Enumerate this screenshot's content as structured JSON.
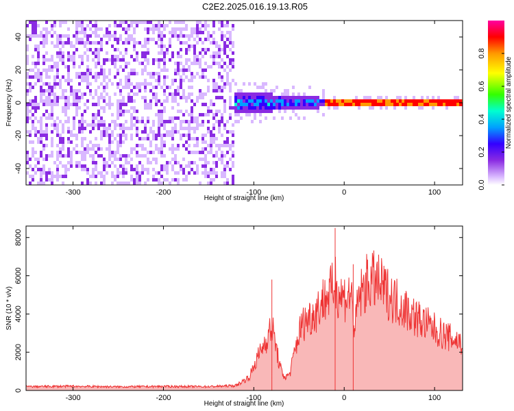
{
  "title": "C2E2.2025.016.19.13.R05",
  "chart_data": [
    {
      "type": "heatmap",
      "xlabel": "Height of straight line (km)",
      "ylabel": "Frequency (Hz)",
      "xlim": [
        -352,
        131
      ],
      "ylim": [
        -50,
        50
      ],
      "xticks": [
        -300,
        -200,
        -100,
        0,
        100
      ],
      "yticks": [
        -40,
        -20,
        0,
        20,
        40
      ],
      "colorbar": {
        "label": "Normalized spectral amplitude",
        "range": [
          0,
          1
        ],
        "ticks": [
          0.0,
          0.2,
          0.4,
          0.6,
          0.8
        ],
        "colors": [
          "#ffffff",
          "#d9b8ff",
          "#8a2be2",
          "#3300ff",
          "#00a0ff",
          "#00ffd0",
          "#33ff00",
          "#ffff00",
          "#ff9900",
          "#ff0000",
          "#ff00a0"
        ]
      },
      "regions": [
        {
          "x": [
            -352,
            -122
          ],
          "freq": [
            -50,
            50
          ],
          "amplitude": 0.12
        },
        {
          "x": [
            -122,
            -20
          ],
          "freq": [
            -7,
            7
          ],
          "amplitude": 0.35
        },
        {
          "x": [
            -20,
            131
          ],
          "freq": [
            -3,
            3
          ],
          "amplitude": 0.85
        }
      ]
    },
    {
      "type": "line",
      "xlabel": "Height of straight line (km)",
      "ylabel": "SNR (10 * v/v)",
      "xlim": [
        -352,
        131
      ],
      "ylim": [
        0,
        8600
      ],
      "xticks": [
        -300,
        -200,
        -100,
        0,
        100
      ],
      "yticks": [
        0,
        2000,
        4000,
        6000,
        8000
      ],
      "series": [
        {
          "color": "#ee3333",
          "x": [
            -352,
            -300,
            -250,
            -200,
            -150,
            -120,
            -105,
            -95,
            -85,
            -80,
            -76,
            -72,
            -68,
            -64,
            -60,
            -56,
            -52,
            -48,
            -44,
            -40,
            -36,
            -32,
            -28,
            -24,
            -20,
            -16,
            -12,
            -10,
            -8,
            -4,
            0,
            4,
            8,
            12,
            14,
            16,
            20,
            25,
            30,
            35,
            40,
            50,
            60,
            70,
            80,
            90,
            100,
            110,
            120,
            131
          ],
          "y": [
            200,
            220,
            190,
            210,
            200,
            250,
            700,
            1800,
            2800,
            3300,
            2500,
            1400,
            800,
            700,
            900,
            1800,
            2600,
            3300,
            3600,
            3800,
            3900,
            4100,
            4400,
            4700,
            4900,
            5100,
            5300,
            6000,
            5300,
            5000,
            4900,
            5000,
            5000,
            3000,
            4200,
            4800,
            5200,
            5600,
            5800,
            5700,
            5500,
            5000,
            4600,
            4200,
            3800,
            3500,
            3200,
            2900,
            2700,
            2500
          ],
          "noise": 0.28
        }
      ],
      "annotations": [
        {
          "x": -10,
          "y": 8500
        },
        {
          "x": 10,
          "y": 6600
        },
        {
          "x": -80,
          "y": 5800
        }
      ]
    }
  ]
}
